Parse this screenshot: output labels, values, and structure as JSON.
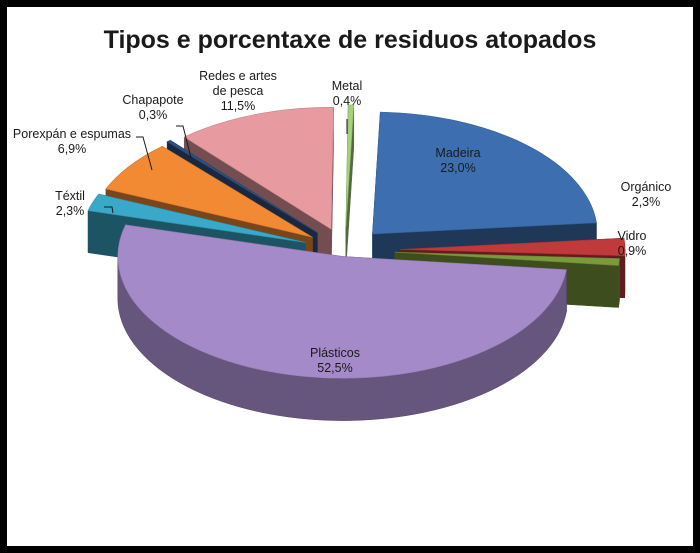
{
  "chart_data": {
    "type": "pie",
    "title": "Tipos e porcentaxe de residuos atopados",
    "slices": [
      {
        "name": "Madeira",
        "value": 23.0,
        "label": "23,0%",
        "color": "#3d6fb0"
      },
      {
        "name": "Orgánico",
        "value": 2.3,
        "label": "2,3%",
        "color": "#c0393b"
      },
      {
        "name": "Vidro",
        "value": 0.9,
        "label": "0,9%",
        "color": "#7b9a3c"
      },
      {
        "name": "Plásticos",
        "value": 52.5,
        "label": "52,5%",
        "color": "#a58ac9"
      },
      {
        "name": "Téxtil",
        "value": 2.3,
        "label": "2,3%",
        "color": "#3aa8c8"
      },
      {
        "name": "Porexpán e espumas",
        "value": 6.9,
        "label": "6,9%",
        "color": "#f28a34"
      },
      {
        "name": "Chapapote",
        "value": 0.3,
        "label": "0,3%",
        "color": "#2f4f80"
      },
      {
        "name": "Redes e artes de pesca",
        "value": 11.5,
        "label": "11,5%",
        "color": "#e79aa0"
      },
      {
        "name": "Metal",
        "value": 0.4,
        "label": "0,4%",
        "color": "#a6d17a"
      }
    ]
  }
}
